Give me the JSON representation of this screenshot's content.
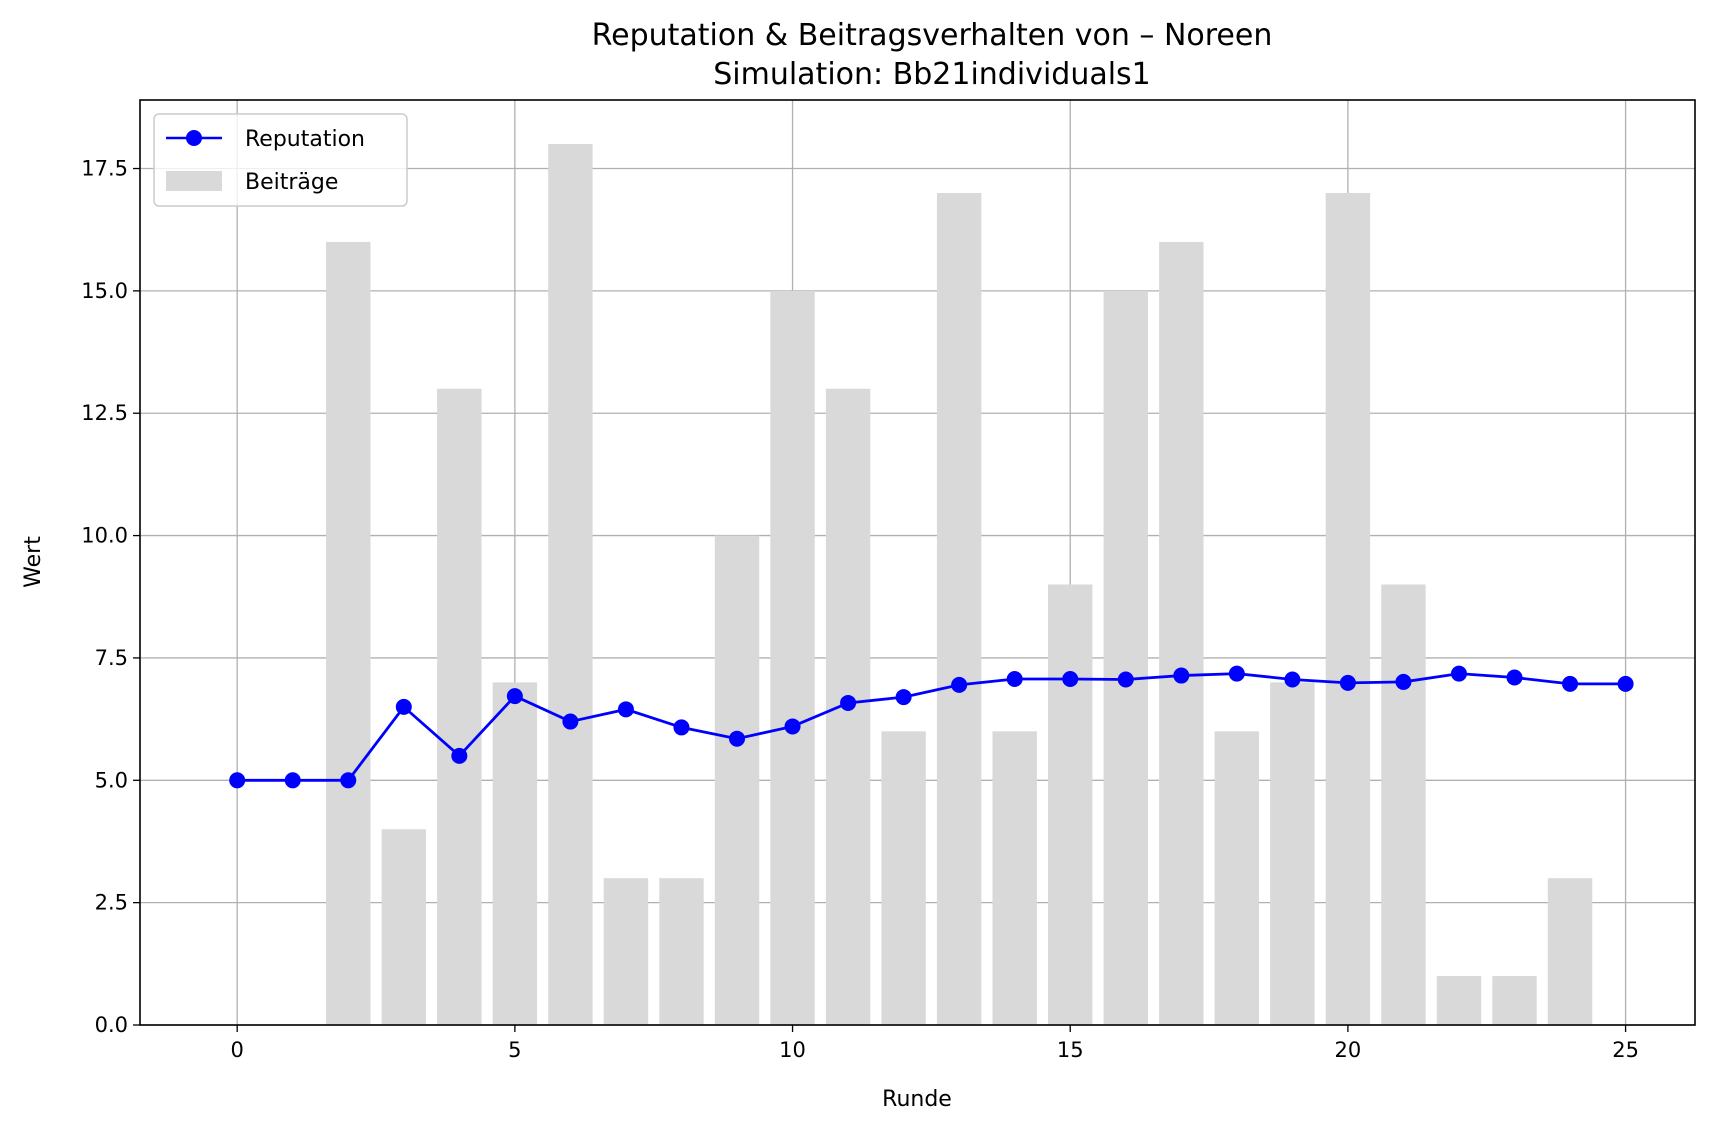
{
  "chart_data": {
    "type": "bar+line",
    "title": "Reputation & Beitragsverhalten von – Noreen",
    "subtitle": "Simulation: Bb21individuals1",
    "xlabel": "Runde",
    "ylabel": "Wert",
    "xlim": [
      -1.75,
      26.25
    ],
    "ylim": [
      0,
      18.9
    ],
    "xticks": [
      0,
      5,
      10,
      15,
      20,
      25
    ],
    "yticks": [
      0.0,
      2.5,
      5.0,
      7.5,
      10.0,
      12.5,
      15.0,
      17.5
    ],
    "ytick_labels": [
      "0.0",
      "2.5",
      "5.0",
      "7.5",
      "10.0",
      "12.5",
      "15.0",
      "17.5"
    ],
    "grid": true,
    "legend_position": "top-left",
    "x": [
      0,
      1,
      2,
      3,
      4,
      5,
      6,
      7,
      8,
      9,
      10,
      11,
      12,
      13,
      14,
      15,
      16,
      17,
      18,
      19,
      20,
      21,
      22,
      23,
      24,
      25
    ],
    "series": [
      {
        "name": "Reputation",
        "type": "line",
        "color": "#0000ff",
        "values": [
          5.0,
          5.0,
          5.0,
          6.5,
          5.5,
          6.72,
          6.2,
          6.45,
          6.08,
          5.85,
          6.1,
          6.58,
          6.7,
          6.95,
          7.07,
          7.07,
          7.06,
          7.14,
          7.18,
          7.06,
          6.99,
          7.01,
          7.18,
          7.1,
          6.97,
          6.97
        ]
      },
      {
        "name": "Beiträge",
        "type": "bar",
        "color": "#d9d9d9",
        "values": [
          0,
          0,
          16,
          4,
          13,
          7,
          18,
          3,
          3,
          10,
          15,
          13,
          6,
          17,
          6,
          9,
          15,
          16,
          6,
          7,
          17,
          9,
          1,
          1,
          3,
          0
        ]
      }
    ]
  }
}
